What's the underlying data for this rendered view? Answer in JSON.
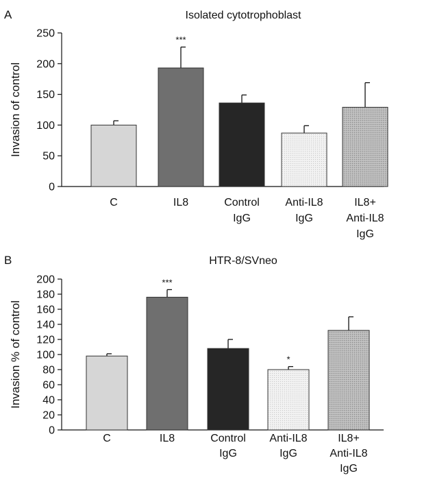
{
  "chart_data": [
    {
      "type": "bar",
      "panel": "A",
      "title": "Isolated cytotrophoblast",
      "ylabel": "Invasion of control",
      "xlabel": "",
      "ylim": [
        0,
        250
      ],
      "yticks": [
        0,
        50,
        100,
        150,
        200,
        250
      ],
      "grid": false,
      "categories": [
        [
          "C"
        ],
        [
          "IL8"
        ],
        [
          "Control",
          "IgG"
        ],
        [
          "Anti-IL8",
          "IgG"
        ],
        [
          "IL8+",
          "Anti-IL8",
          "IgG"
        ]
      ],
      "values": [
        100,
        193,
        136,
        87,
        129
      ],
      "errors": [
        7,
        34,
        13,
        12,
        40
      ],
      "significance": [
        "",
        "***",
        "",
        "",
        ""
      ],
      "colors": [
        "#d6d6d6",
        "#6f6f6f",
        "#262626",
        "#ececec",
        "#b4b4b4"
      ]
    },
    {
      "type": "bar",
      "panel": "B",
      "title": "HTR-8/SVneo",
      "ylabel": "Invasion % of control",
      "xlabel": "",
      "ylim": [
        0,
        200
      ],
      "yticks": [
        0,
        20,
        40,
        60,
        80,
        100,
        120,
        140,
        160,
        180,
        200
      ],
      "grid": false,
      "categories": [
        [
          "C"
        ],
        [
          "IL8"
        ],
        [
          "Control",
          "IgG"
        ],
        [
          "Anti-IL8",
          "IgG"
        ],
        [
          "IL8+",
          "Anti-IL8",
          "IgG"
        ]
      ],
      "values": [
        98,
        176,
        108,
        80,
        132
      ],
      "errors": [
        3,
        10,
        12,
        4,
        18
      ],
      "significance": [
        "",
        "***",
        "",
        "*",
        ""
      ],
      "colors": [
        "#d6d6d6",
        "#6f6f6f",
        "#262626",
        "#ececec",
        "#b4b4b4"
      ]
    }
  ]
}
